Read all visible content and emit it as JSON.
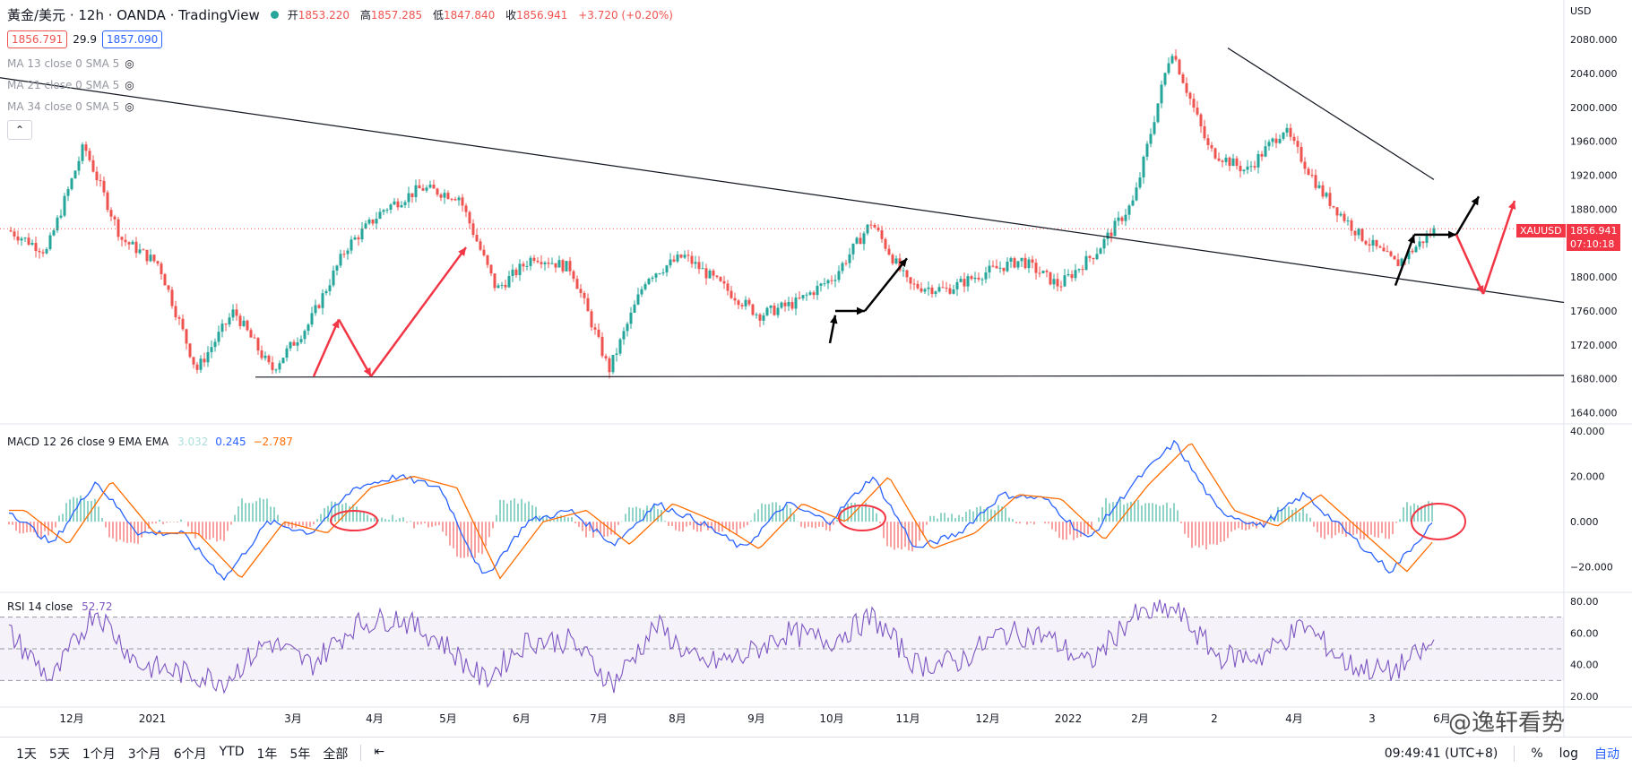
{
  "header": {
    "symbol": "黃金/美元 · 12h · OANDA · TradingView",
    "open_label": "开",
    "open": "1853.220",
    "high_label": "高",
    "high": "1857.285",
    "low_label": "低",
    "low": "1847.840",
    "close_label": "收",
    "close": "1856.941",
    "change": "+3.720 (+0.20%)",
    "bid": "1856.791",
    "spread": "29.9",
    "ask": "1857.090"
  },
  "indicators": {
    "ma13": "MA 13 close 0 SMA 5",
    "ma21": "MA 21 close 0 SMA 5",
    "ma34": "MA 34 close 0 SMA 5",
    "collapse_icon": "chevron-up-icon",
    "macd_label": "MACD 12 26 close 9 EMA EMA",
    "macd_hist": "3.032",
    "macd_line": "0.245",
    "macd_signal": "−2.787",
    "rsi_label": "RSI 14 close",
    "rsi_value": "52.72"
  },
  "price_axis": {
    "currency": "USD",
    "ticks": [
      "2080.000",
      "2040.000",
      "2000.000",
      "1960.000",
      "1920.000",
      "1880.000",
      "1840.000",
      "1800.000",
      "1760.000",
      "1720.000",
      "1680.000",
      "1640.000"
    ],
    "last_symbol": "XAUUSD",
    "last_price": "1856.941",
    "countdown": "07:10:18"
  },
  "macd_axis": {
    "ticks": [
      "40.000",
      "20.000",
      "0.000",
      "−20.000"
    ]
  },
  "rsi_axis": {
    "ticks": [
      "80.00",
      "60.00",
      "40.00",
      "20.00"
    ]
  },
  "time_axis": {
    "ticks": [
      "12月",
      "2021",
      "3月",
      "4月",
      "5月",
      "6月",
      "7月",
      "8月",
      "9月",
      "10月",
      "11月",
      "12月",
      "2022",
      "2月",
      "2",
      "4月",
      "3",
      "6月"
    ]
  },
  "bottom_bar": {
    "timeframes": [
      "1天",
      "5天",
      "1个月",
      "3个月",
      "6个月",
      "YTD",
      "1年",
      "5年",
      "全部"
    ],
    "goto_icon": "calendar-range-icon",
    "clock": "09:49:41 (UTC+8)",
    "percent": "%",
    "log": "log",
    "auto": "自动"
  },
  "watermark": "@逸轩看势",
  "colors": {
    "up": "#26a69a",
    "down": "#ef5350",
    "macd": "#2962ff",
    "signal": "#ff6d00",
    "rsi": "#7e57c2",
    "arrow_red": "#f23645",
    "arrow_black": "#000000"
  },
  "chart_data": {
    "type": "candlestick",
    "timeframe": "12h",
    "x_ticks": [
      "12月",
      "2021",
      "3月",
      "4月",
      "5月",
      "6月",
      "7月",
      "8月",
      "9月",
      "10月",
      "11月",
      "12月",
      "2022",
      "2月",
      "2",
      "4月",
      "3",
      "6月"
    ],
    "y_range": [
      1630,
      2095
    ],
    "price_path": [
      [
        "12月",
        1855
      ],
      [
        "12月",
        1830
      ],
      [
        "2021",
        1955
      ],
      [
        "2021",
        1845
      ],
      [
        "3月",
        1815
      ],
      [
        "3月",
        1690
      ],
      [
        "3月",
        1760
      ],
      [
        "4月",
        1690
      ],
      [
        "4月",
        1745
      ],
      [
        "5月",
        1835
      ],
      [
        "5月",
        1880
      ],
      [
        "6月",
        1905
      ],
      [
        "6月",
        1895
      ],
      [
        "7月",
        1785
      ],
      [
        "7月",
        1825
      ],
      [
        "8月",
        1810
      ],
      [
        "8月",
        1690
      ],
      [
        "8月",
        1800
      ],
      [
        "9月",
        1825
      ],
      [
        "9月",
        1790
      ],
      [
        "10月",
        1755
      ],
      [
        "10月",
        1770
      ],
      [
        "11月",
        1800
      ],
      [
        "11月",
        1865
      ],
      [
        "12月",
        1790
      ],
      [
        "12月",
        1785
      ],
      [
        "2022",
        1805
      ],
      [
        "2022",
        1820
      ],
      [
        "2月",
        1790
      ],
      [
        "2月",
        1830
      ],
      [
        "2",
        1890
      ],
      [
        "2",
        2070
      ],
      [
        "2",
        1950
      ],
      [
        "4月",
        1925
      ],
      [
        "4月",
        1975
      ],
      [
        "3",
        1900
      ],
      [
        "3",
        1850
      ],
      [
        "3",
        1815
      ],
      [
        "6月",
        1855
      ]
    ],
    "macd_range": [
      -30,
      42
    ],
    "macd_line": [
      [
        "12月",
        5
      ],
      [
        "12月",
        -10
      ],
      [
        "2021",
        18
      ],
      [
        "2021",
        -5
      ],
      [
        "3月",
        -5
      ],
      [
        "3月",
        -25
      ],
      [
        "4月",
        0
      ],
      [
        "4月",
        -5
      ],
      [
        "5月",
        15
      ],
      [
        "6月",
        20
      ],
      [
        "6月",
        15
      ],
      [
        "7月",
        -25
      ],
      [
        "7月",
        0
      ],
      [
        "8月",
        5
      ],
      [
        "8月",
        -10
      ],
      [
        "9月",
        8
      ],
      [
        "9月",
        0
      ],
      [
        "10月",
        -12
      ],
      [
        "10月",
        8
      ],
      [
        "11月",
        0
      ],
      [
        "11月",
        20
      ],
      [
        "12月",
        -12
      ],
      [
        "12月",
        -5
      ],
      [
        "2022",
        12
      ],
      [
        "2022",
        10
      ],
      [
        "2月",
        -8
      ],
      [
        "2",
        16
      ],
      [
        "2",
        35
      ],
      [
        "2",
        5
      ],
      [
        "4月",
        -2
      ],
      [
        "4月",
        12
      ],
      [
        "3",
        -5
      ],
      [
        "3",
        -22
      ],
      [
        "6月",
        0
      ]
    ],
    "rsi_range": [
      15,
      85
    ],
    "rsi_levels": [
      70,
      50,
      30
    ],
    "rsi_line": [
      [
        "12月",
        60
      ],
      [
        "12月",
        30
      ],
      [
        "2021",
        75
      ],
      [
        "2021",
        40
      ],
      [
        "3月",
        35
      ],
      [
        "3月",
        30
      ],
      [
        "4月",
        55
      ],
      [
        "4月",
        40
      ],
      [
        "5月",
        65
      ],
      [
        "6月",
        70
      ],
      [
        "6月",
        55
      ],
      [
        "7月",
        30
      ],
      [
        "7月",
        55
      ],
      [
        "8月",
        55
      ],
      [
        "8月",
        28
      ],
      [
        "9月",
        65
      ],
      [
        "9月",
        40
      ],
      [
        "10月",
        45
      ],
      [
        "10月",
        60
      ],
      [
        "11月",
        55
      ],
      [
        "11月",
        70
      ],
      [
        "12月",
        40
      ],
      [
        "12月",
        42
      ],
      [
        "2022",
        60
      ],
      [
        "2022",
        58
      ],
      [
        "2月",
        40
      ],
      [
        "2",
        70
      ],
      [
        "2",
        75
      ],
      [
        "2",
        45
      ],
      [
        "4月",
        45
      ],
      [
        "4月",
        65
      ],
      [
        "3",
        40
      ],
      [
        "3",
        35
      ],
      [
        "6月",
        52.72
      ]
    ]
  }
}
